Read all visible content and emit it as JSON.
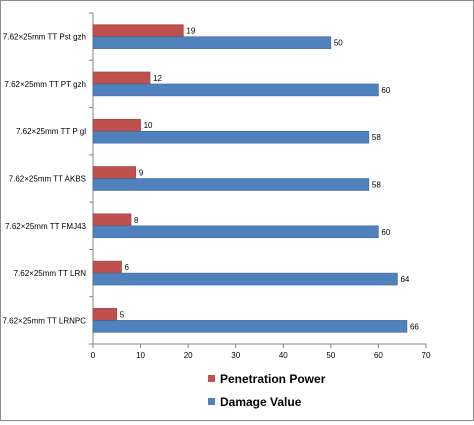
{
  "chart_data": {
    "type": "bar",
    "orientation": "horizontal",
    "categories": [
      "7.62×25mm TT Pst gzh",
      "7.62×25mm TT PT gzh",
      "7.62×25mm TT P gl",
      "7.62×25mm TT AKBS",
      "7.62×25mm TT FMJ43",
      "7.62×25mm TT LRN",
      "7.62×25mm TT LRNPC"
    ],
    "series": [
      {
        "name": "Penetration Power",
        "color": "#c0504d",
        "values": [
          19,
          12,
          10,
          9,
          8,
          6,
          5
        ]
      },
      {
        "name": "Damage Value",
        "color": "#4f81bd",
        "values": [
          50,
          60,
          58,
          58,
          60,
          64,
          66
        ]
      }
    ],
    "xlim": [
      0,
      70
    ],
    "x_ticks": [
      "0",
      "10",
      "20",
      "30",
      "40",
      "50",
      "60",
      "70"
    ],
    "grid": false,
    "legend_position": "bottom",
    "title": "",
    "xlabel": "",
    "ylabel": ""
  }
}
